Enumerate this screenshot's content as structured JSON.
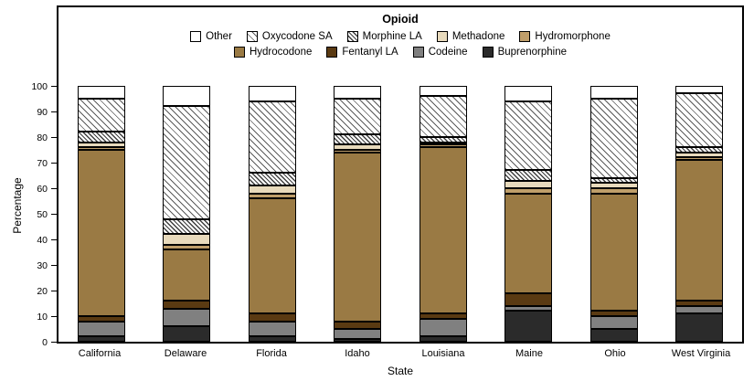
{
  "chart_data": {
    "type": "bar",
    "stacked": true,
    "legend_title": "Opioid",
    "xlabel": "State",
    "ylabel": "Percentage",
    "ylim": [
      0,
      100
    ],
    "yticks": [
      0,
      10,
      20,
      30,
      40,
      50,
      60,
      70,
      80,
      90,
      100
    ],
    "grid": false,
    "legend_position": "top-center",
    "categories": [
      "California",
      "Delaware",
      "Florida",
      "Idaho",
      "Louisiana",
      "Maine",
      "Ohio",
      "West Virginia"
    ],
    "series": [
      {
        "name": "Buprenorphine",
        "color": "#2b2b2b",
        "hatch": null,
        "values": [
          2,
          6,
          2,
          1,
          2,
          12,
          5,
          11
        ]
      },
      {
        "name": "Codeine",
        "color": "#808080",
        "hatch": null,
        "values": [
          6,
          7,
          6,
          4,
          7,
          2,
          5,
          3
        ]
      },
      {
        "name": "Fentanyl LA",
        "color": "#5a3a12",
        "hatch": null,
        "values": [
          2,
          3,
          3,
          3,
          2,
          5,
          2,
          2
        ]
      },
      {
        "name": "Hydrocodone",
        "color": "#9a7a44",
        "hatch": null,
        "values": [
          65,
          20,
          45,
          66,
          65,
          39,
          46,
          55
        ]
      },
      {
        "name": "Hydromorphone",
        "color": "#bf9e6a",
        "hatch": null,
        "values": [
          1,
          2,
          2,
          1,
          1,
          2,
          2,
          1
        ]
      },
      {
        "name": "Methadone",
        "color": "#e8dabc",
        "hatch": null,
        "values": [
          2,
          4,
          3,
          2,
          1,
          3,
          2,
          2
        ]
      },
      {
        "name": "Morphine LA",
        "color": "#ffffff",
        "hatch": "dense",
        "values": [
          4,
          6,
          5,
          4,
          2,
          4,
          2,
          2
        ]
      },
      {
        "name": "Oxycodone SA",
        "color": "#ffffff",
        "hatch": "light",
        "values": [
          13,
          44,
          28,
          14,
          16,
          27,
          31,
          21
        ]
      },
      {
        "name": "Other",
        "color": "#ffffff",
        "hatch": null,
        "values": [
          5,
          8,
          6,
          5,
          4,
          6,
          5,
          3
        ]
      }
    ],
    "legend_rows": [
      [
        "Other",
        "Oxycodone SA",
        "Morphine LA",
        "Methadone",
        "Hydromorphone"
      ],
      [
        "Hydrocodone",
        "Fentanyl LA",
        "Codeine",
        "Buprenorphine"
      ]
    ]
  }
}
